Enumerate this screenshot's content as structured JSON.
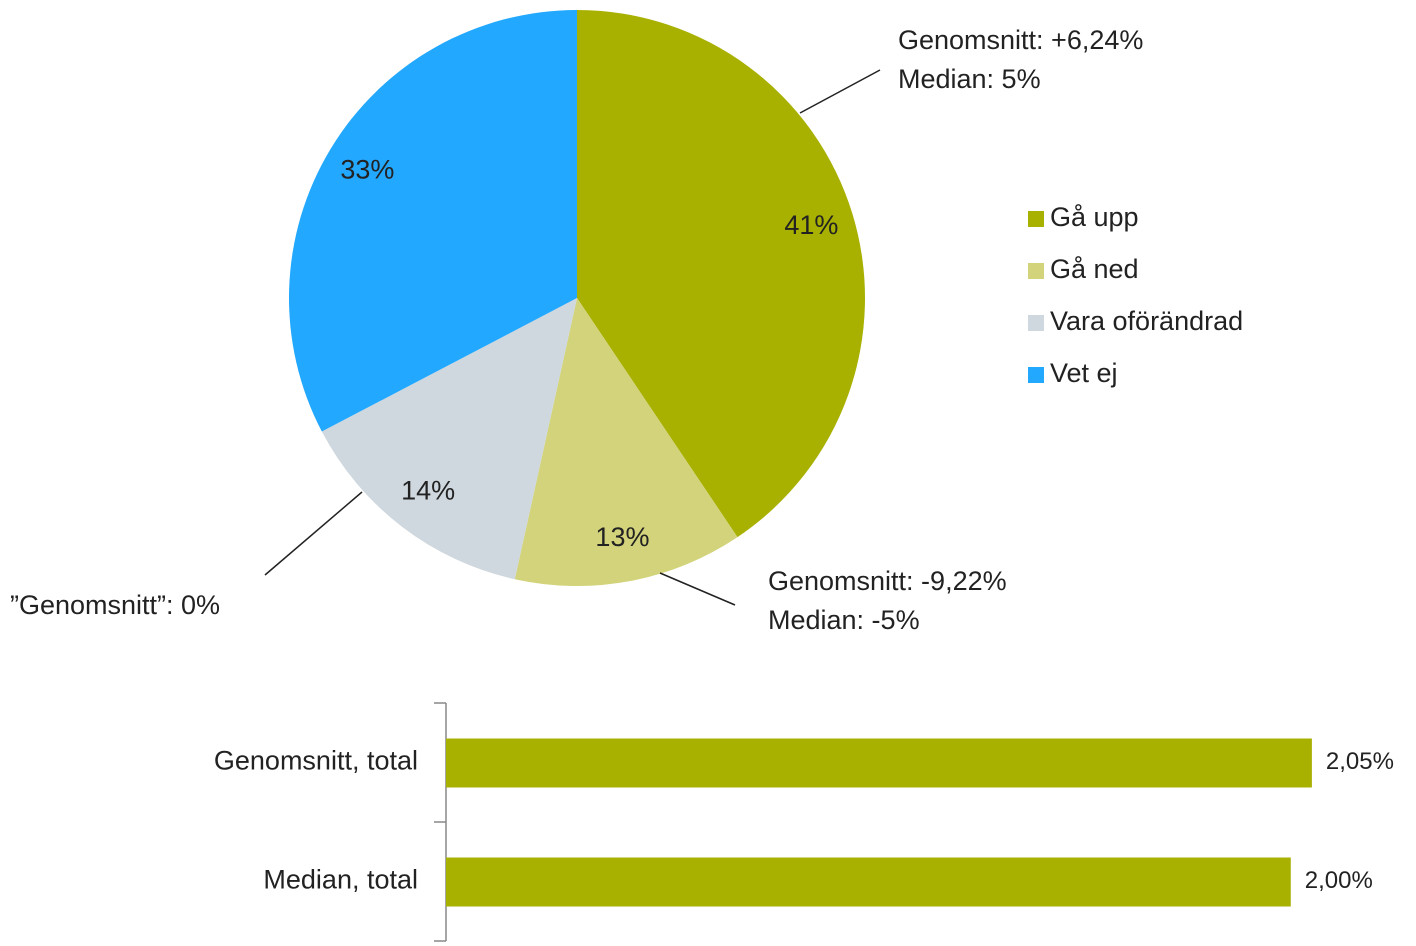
{
  "chart_data": [
    {
      "type": "pie",
      "categories": [
        "Gå upp",
        "Gå ned",
        "Vara oförändrad",
        "Vet ej"
      ],
      "values": [
        41,
        13,
        14,
        33
      ],
      "value_labels": [
        "41%",
        "13%",
        "14%",
        "33%"
      ],
      "colors": [
        "#a8b000",
        "#d2d37a",
        "#cfd8de",
        "#22a8ff"
      ],
      "legend": "right",
      "annotations": [
        {
          "lines": [
            "Genomsnitt: +6,24%",
            "Median: 5%"
          ]
        },
        {
          "lines": [
            "Genomsnitt: -9,22%",
            "Median: -5%"
          ]
        },
        {
          "lines": [
            "”Genomsnitt”: 0%"
          ]
        }
      ]
    },
    {
      "type": "hbar",
      "categories": [
        "Genomsnitt, total",
        "Median, total"
      ],
      "values": [
        2.05,
        2.0
      ],
      "value_labels": [
        "2,05%",
        "2,00%"
      ],
      "color": "#a8b000",
      "xlim": [
        0,
        2.1
      ]
    }
  ]
}
